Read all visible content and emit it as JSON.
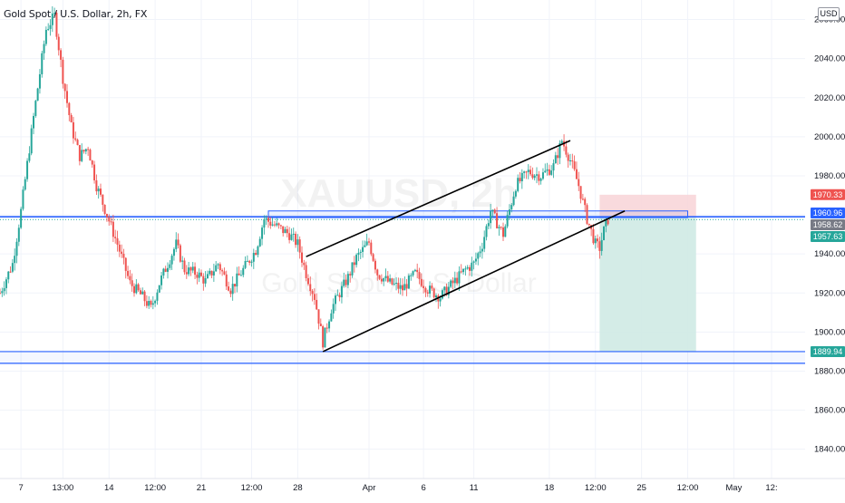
{
  "header": {
    "title": "Gold Spot / U.S. Dollar, 2h, FX",
    "currency": "USD"
  },
  "watermark": {
    "symbol": "XAUUSD, 2h",
    "name": "Gold Spot / U.S. Dollar"
  },
  "colors": {
    "up": "#26a69a",
    "down": "#ef5350",
    "level_line": "#2962ff",
    "zone_fill": "#e9eefb",
    "stop_zone": "#f8d3d7",
    "target_zone": "#cfeae4",
    "axis_text": "#131722",
    "grid": "#f0f3fa"
  },
  "chart_data": {
    "type": "candlestick",
    "title": "Gold Spot / U.S. Dollar, 2h, FX",
    "ylim": [
      1825,
      2070
    ],
    "y_ticks": [
      "2060.00",
      "2040.00",
      "2020.00",
      "2000.00",
      "1980.00",
      "1960.00",
      "1940.00",
      "1920.00",
      "1900.00",
      "1880.00",
      "1860.00",
      "1840.00"
    ],
    "y_tick_values": [
      2060,
      2040,
      2020,
      2000,
      1980,
      1960,
      1940,
      1920,
      1900,
      1880,
      1860,
      1840
    ],
    "x_ticks": [
      "7",
      "13:00",
      "14",
      "12:00",
      "21",
      "12:00",
      "28",
      "Apr",
      "6",
      "11",
      "18",
      "12:00",
      "25",
      "12:00",
      "May",
      "12:"
    ],
    "x_tick_index": [
      5,
      15,
      26,
      37,
      48,
      60,
      71,
      88,
      101,
      113,
      131,
      142,
      153,
      164,
      175,
      184
    ],
    "x_range": [
      0,
      192
    ],
    "last_index": 145,
    "price_path": [
      [
        0,
        1920
      ],
      [
        3,
        1935
      ],
      [
        5,
        1962
      ],
      [
        8,
        2010
      ],
      [
        11,
        2055
      ],
      [
        13,
        2062
      ],
      [
        15,
        2030
      ],
      [
        17,
        2005
      ],
      [
        19,
        1990
      ],
      [
        21,
        1995
      ],
      [
        23,
        1975
      ],
      [
        25,
        1963
      ],
      [
        28,
        1945
      ],
      [
        31,
        1925
      ],
      [
        34,
        1918
      ],
      [
        36,
        1912
      ],
      [
        38,
        1925
      ],
      [
        40,
        1935
      ],
      [
        42,
        1945
      ],
      [
        44,
        1932
      ],
      [
        47,
        1930
      ],
      [
        49,
        1926
      ],
      [
        52,
        1935
      ],
      [
        55,
        1922
      ],
      [
        58,
        1932
      ],
      [
        61,
        1942
      ],
      [
        63,
        1958
      ],
      [
        66,
        1954
      ],
      [
        69,
        1950
      ],
      [
        71,
        1945
      ],
      [
        73,
        1930
      ],
      [
        75,
        1918
      ],
      [
        77,
        1895
      ],
      [
        79,
        1912
      ],
      [
        81,
        1920
      ],
      [
        83,
        1928
      ],
      [
        85,
        1938
      ],
      [
        88,
        1946
      ],
      [
        90,
        1930
      ],
      [
        93,
        1925
      ],
      [
        96,
        1922
      ],
      [
        99,
        1930
      ],
      [
        102,
        1922
      ],
      [
        105,
        1918
      ],
      [
        108,
        1925
      ],
      [
        111,
        1932
      ],
      [
        113,
        1935
      ],
      [
        115,
        1945
      ],
      [
        117,
        1962
      ],
      [
        120,
        1950
      ],
      [
        123,
        1975
      ],
      [
        126,
        1982
      ],
      [
        129,
        1980
      ],
      [
        132,
        1985
      ],
      [
        134,
        1998
      ],
      [
        136,
        1988
      ],
      [
        138,
        1975
      ],
      [
        140,
        1958
      ],
      [
        142,
        1945
      ],
      [
        143,
        1943
      ],
      [
        144,
        1952
      ],
      [
        145,
        1957.6
      ]
    ],
    "price_labels": [
      {
        "value": 1970.33,
        "text": "1970.33",
        "color": "#ef5350"
      },
      {
        "value": 1960.96,
        "text": "1960.96",
        "color": "#2962ff"
      },
      {
        "value": 1958.62,
        "text": "1958.62",
        "color": "#787b86"
      },
      {
        "value": 1957.63,
        "text": "1957.63",
        "color": "#26a69a"
      },
      {
        "value": 1889.94,
        "text": "1889.94",
        "color": "#26a69a"
      }
    ],
    "horizontal_levels": [
      1959,
      1890,
      1884
    ],
    "resistance_zone": {
      "x_from": 64,
      "x_to": 164,
      "y_low": 1958.6,
      "y_high": 1962
    },
    "channel": {
      "upper": [
        [
          73,
          1938.6
        ],
        [
          136,
          1998
        ]
      ],
      "lower": [
        [
          77,
          1890
        ],
        [
          149,
          1962
        ]
      ]
    },
    "position": {
      "x_from": 143,
      "x_to": 166,
      "entry": 1958.6,
      "stop": 1970.3,
      "target": 1889.9
    }
  }
}
